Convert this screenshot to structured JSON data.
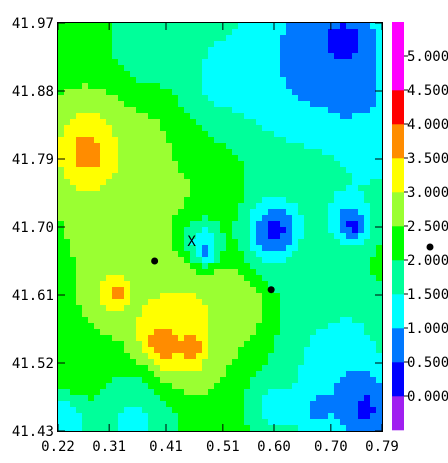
{
  "chart_data": {
    "type": "heatmap",
    "title": "",
    "xlabel": "",
    "ylabel": "",
    "x_ticks": [
      "0.22",
      "0.31",
      "0.41",
      "0.51",
      "0.60",
      "0.70",
      "0.79"
    ],
    "y_ticks": [
      "41.97",
      "41.88",
      "41.79",
      "41.70",
      "41.61",
      "41.52",
      "41.43"
    ],
    "xlim": [
      0.22,
      0.79
    ],
    "ylim": [
      41.43,
      41.97
    ],
    "grid": false,
    "colorbar": {
      "levels": [
        "0.000",
        "0.500",
        "1.000",
        "1.500",
        "2.000",
        "2.500",
        "3.000",
        "3.500",
        "4.000",
        "4.500",
        "5.000"
      ],
      "colors": [
        "#a020f0",
        "#0000ff",
        "#0078ff",
        "#00ffff",
        "#00ff9a",
        "#00ff00",
        "#9aff32",
        "#ffff00",
        "#ff8c00",
        "#ff0000",
        "#ff00ff",
        "#ff00ff"
      ]
    },
    "points": [
      {
        "x": 0.39,
        "y": 41.655,
        "marker": "dot"
      },
      {
        "x": 0.595,
        "y": 41.617,
        "marker": "dot"
      }
    ],
    "annotations": [
      {
        "x": 0.455,
        "y": 41.68,
        "text": "X"
      }
    ],
    "hotspots": [
      {
        "x": 0.28,
        "y": 41.8,
        "r": 0.05,
        "value": 3.8
      },
      {
        "x": 0.29,
        "y": 41.79,
        "r": 0.025,
        "value": 4.3
      },
      {
        "x": 0.42,
        "y": 41.55,
        "r": 0.055,
        "value": 3.9
      },
      {
        "x": 0.4,
        "y": 41.545,
        "r": 0.02,
        "value": 4.6
      },
      {
        "x": 0.455,
        "y": 41.545,
        "r": 0.012,
        "value": 4.6
      },
      {
        "x": 0.31,
        "y": 41.615,
        "r": 0.035,
        "value": 3.2
      },
      {
        "x": 0.325,
        "y": 41.615,
        "r": 0.012,
        "value": 4.3
      },
      {
        "x": 0.55,
        "y": 41.6,
        "r": 0.04,
        "value": 3.0
      },
      {
        "x": 0.45,
        "y": 41.62,
        "r": 0.06,
        "value": 3.1
      },
      {
        "x": 0.38,
        "y": 41.83,
        "r": 0.07,
        "value": 3.1
      },
      {
        "x": 0.3,
        "y": 41.7,
        "r": 0.05,
        "value": 2.8
      },
      {
        "x": 0.45,
        "y": 41.76,
        "r": 0.08,
        "value": 2.6
      },
      {
        "x": 0.27,
        "y": 41.47,
        "r": 0.05,
        "value": 2.7
      },
      {
        "x": 0.6,
        "y": 41.69,
        "r": 0.04,
        "value": 0.7
      },
      {
        "x": 0.605,
        "y": 41.695,
        "r": 0.018,
        "value": 0.2
      },
      {
        "x": 0.73,
        "y": 41.71,
        "r": 0.03,
        "value": 0.8
      },
      {
        "x": 0.74,
        "y": 41.7,
        "r": 0.012,
        "value": 0.2
      },
      {
        "x": 0.475,
        "y": 41.68,
        "r": 0.025,
        "value": 1.2
      },
      {
        "x": 0.48,
        "y": 41.665,
        "r": 0.01,
        "value": 0.8
      },
      {
        "x": 0.63,
        "y": 41.91,
        "r": 0.1,
        "value": 1.1
      },
      {
        "x": 0.7,
        "y": 41.94,
        "r": 0.06,
        "value": 0.6
      },
      {
        "x": 0.73,
        "y": 41.935,
        "r": 0.03,
        "value": 0.2
      },
      {
        "x": 0.75,
        "y": 41.87,
        "r": 0.05,
        "value": 0.8
      },
      {
        "x": 0.5,
        "y": 41.9,
        "r": 0.05,
        "value": 1.3
      },
      {
        "x": 0.77,
        "y": 41.8,
        "r": 0.04,
        "value": 1.2
      },
      {
        "x": 0.71,
        "y": 41.53,
        "r": 0.07,
        "value": 1.2
      },
      {
        "x": 0.76,
        "y": 41.46,
        "r": 0.04,
        "value": 0.4
      },
      {
        "x": 0.6,
        "y": 41.46,
        "r": 0.03,
        "value": 1.3
      },
      {
        "x": 0.68,
        "y": 41.46,
        "r": 0.03,
        "value": 0.9
      },
      {
        "x": 0.35,
        "y": 41.44,
        "r": 0.06,
        "value": 1.4
      },
      {
        "x": 0.23,
        "y": 41.44,
        "r": 0.03,
        "value": 1.0
      },
      {
        "x": 0.66,
        "y": 41.62,
        "r": 0.04,
        "value": 1.8
      },
      {
        "x": 0.38,
        "y": 41.94,
        "r": 0.06,
        "value": 1.7
      }
    ],
    "base_value": 2.2
  }
}
